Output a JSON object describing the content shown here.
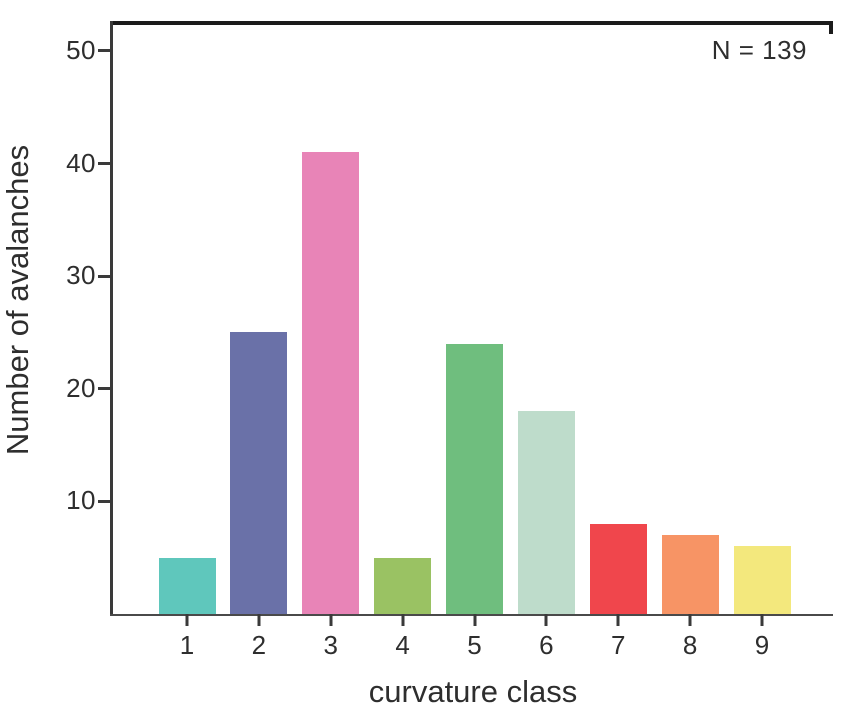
{
  "chart_data": {
    "type": "bar",
    "title": "",
    "xlabel": "curvature class",
    "ylabel": "Number of avalanches",
    "categories": [
      "1",
      "2",
      "3",
      "4",
      "5",
      "6",
      "7",
      "8",
      "9"
    ],
    "values": [
      5,
      25,
      41,
      5,
      24,
      18,
      8,
      7,
      6
    ],
    "colors": [
      "#5fc7bc",
      "#6a71a8",
      "#e884b7",
      "#9ac263",
      "#6fbe7e",
      "#bedccb",
      "#f0464c",
      "#f79465",
      "#f3e87d"
    ],
    "yticks": [
      10,
      20,
      30,
      40,
      50
    ],
    "ylim": [
      0,
      52.3
    ],
    "annotation": "N = 139",
    "grid": false,
    "legend": "none",
    "background": "#ffffff",
    "axis_color": "#3a3a3a",
    "text_color": "#2e2e2e"
  }
}
